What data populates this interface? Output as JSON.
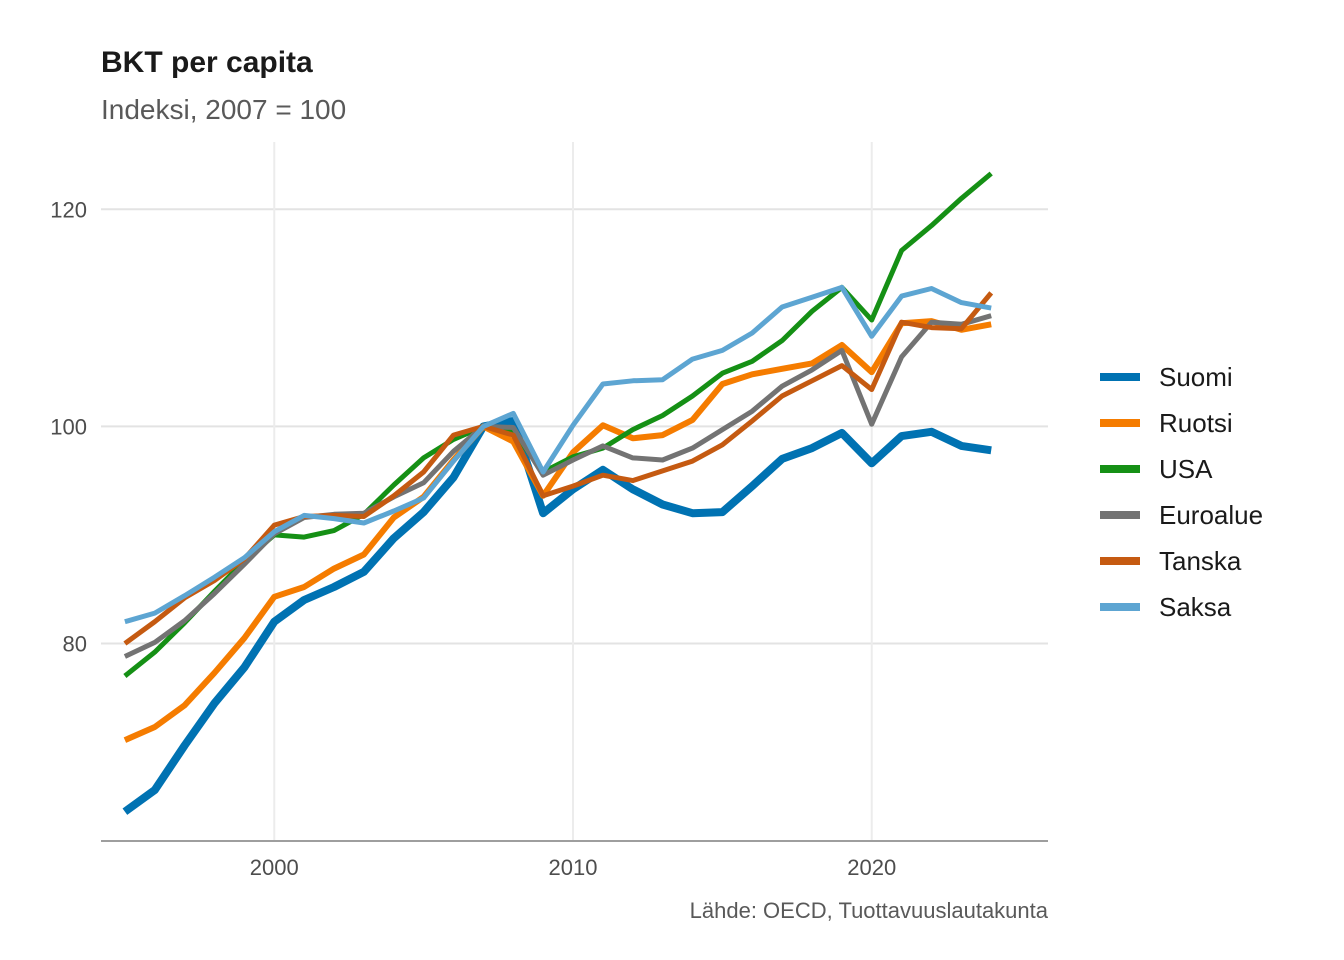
{
  "chart_data": {
    "type": "line",
    "title": "BKT per capita",
    "subtitle": "Indeksi, 2007 = 100",
    "caption": "Lähde: OECD, Tuottavuuslautakunta",
    "xlabel": "",
    "ylabel": "",
    "xlim": [
      1994.2,
      2025.9
    ],
    "ylim": [
      61.8,
      126.2
    ],
    "x_ticks": [
      2000,
      2010,
      2020
    ],
    "y_ticks": [
      80,
      100,
      120
    ],
    "grid": true,
    "legend_position": "right",
    "x": [
      1995,
      1996,
      1997,
      1998,
      1999,
      2000,
      2001,
      2002,
      2003,
      2004,
      2005,
      2006,
      2007,
      2008,
      2009,
      2010,
      2011,
      2012,
      2013,
      2014,
      2015,
      2016,
      2017,
      2018,
      2019,
      2020,
      2021,
      2022,
      2023,
      2024
    ],
    "series": [
      {
        "name": "Suomi",
        "color": "#0072B2",
        "values": [
          64.5,
          66.5,
          70.6,
          74.5,
          77.8,
          82.0,
          84.0,
          85.2,
          86.6,
          89.7,
          92.1,
          95.3,
          100.0,
          100.5,
          92.0,
          94.2,
          96.0,
          94.2,
          92.8,
          92.0,
          92.1,
          94.5,
          97.0,
          98.0,
          99.4,
          96.6,
          99.1,
          99.5,
          98.2,
          97.8
        ]
      },
      {
        "name": "Ruotsi",
        "color": "#F57C00",
        "values": [
          71.1,
          72.3,
          74.3,
          77.3,
          80.5,
          84.3,
          85.2,
          86.9,
          88.2,
          91.6,
          93.5,
          96.9,
          100.0,
          98.6,
          93.6,
          97.6,
          100.1,
          98.9,
          99.2,
          100.6,
          103.9,
          104.8,
          105.3,
          105.8,
          107.5,
          105.0,
          109.5,
          109.7,
          108.9,
          109.4
        ]
      },
      {
        "name": "USA",
        "color": "#159015",
        "values": [
          77.0,
          79.2,
          81.9,
          84.8,
          87.6,
          90.0,
          89.8,
          90.4,
          91.9,
          94.6,
          97.1,
          98.8,
          100.0,
          99.5,
          95.8,
          97.2,
          98.0,
          99.7,
          101.0,
          102.8,
          104.9,
          106.0,
          107.9,
          110.6,
          112.8,
          109.8,
          116.2,
          118.5,
          121.0,
          123.3
        ]
      },
      {
        "name": "Euroalue",
        "color": "#737373",
        "values": [
          78.8,
          80.1,
          82.1,
          84.6,
          87.3,
          90.1,
          91.6,
          91.9,
          92.0,
          93.5,
          94.8,
          97.7,
          100.0,
          99.9,
          95.5,
          96.9,
          98.2,
          97.1,
          96.9,
          98.0,
          99.7,
          101.4,
          103.7,
          105.2,
          107.0,
          100.2,
          106.4,
          109.6,
          109.4,
          110.2
        ]
      },
      {
        "name": "Tanska",
        "color": "#C55A11",
        "values": [
          80.0,
          82.0,
          84.2,
          85.8,
          87.8,
          90.9,
          91.7,
          91.8,
          91.7,
          93.6,
          95.8,
          99.2,
          100.0,
          99.2,
          93.6,
          94.5,
          95.5,
          95.0,
          95.9,
          96.8,
          98.3,
          100.5,
          102.8,
          104.2,
          105.6,
          103.4,
          109.6,
          109.1,
          109.0,
          112.3
        ]
      },
      {
        "name": "Saksa",
        "color": "#5DA5D2",
        "values": [
          82.0,
          82.8,
          84.4,
          86.1,
          87.9,
          90.3,
          91.8,
          91.5,
          91.1,
          92.2,
          93.4,
          96.8,
          100.0,
          101.2,
          95.8,
          100.1,
          103.9,
          104.2,
          104.3,
          106.2,
          107.0,
          108.6,
          111.0,
          111.9,
          112.8,
          108.3,
          112.0,
          112.7,
          111.4,
          110.9
        ]
      }
    ]
  }
}
